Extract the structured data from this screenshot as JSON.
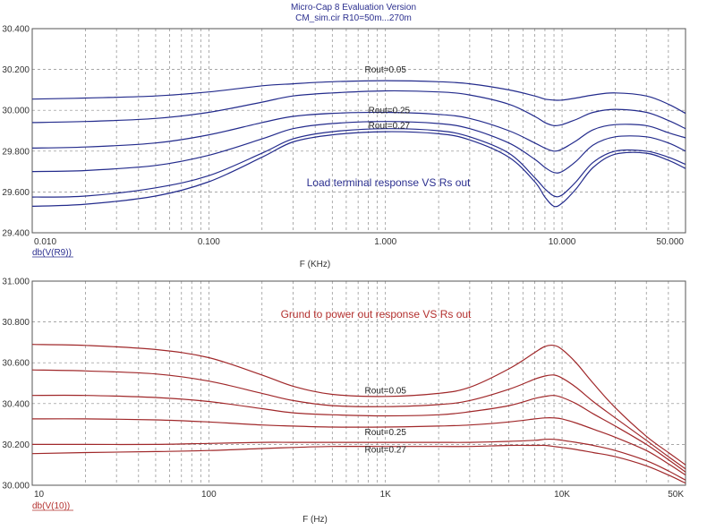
{
  "header": {
    "title": "Micro-Cap 8 Evaluation Version",
    "subtitle": "CM_sim.cir R10=50m...270m"
  },
  "colors": {
    "top_trace": "#232b8c",
    "bottom_trace": "#a0282a",
    "top_text": "#2b2f8f",
    "bottom_text": "#b3302e",
    "grid": "#8a8a8a"
  },
  "chart_data": [
    {
      "type": "line",
      "x_scale": "log",
      "xlim": [
        0.01,
        50
      ],
      "ylim": [
        29.4,
        30.4
      ],
      "xlabel": "F (KHz)",
      "ylabel": "db(V(R9))",
      "x_ticks": [
        0.01,
        0.1,
        1,
        10,
        50
      ],
      "x_tick_labels": [
        "0.010",
        "0.100",
        "1.000",
        "10.000",
        "50.000"
      ],
      "y_ticks": [
        29.4,
        29.6,
        29.8,
        30.0,
        30.2,
        30.4
      ],
      "y_tick_labels": [
        "29.400",
        "29.600",
        "29.800",
        "30.000",
        "30.200",
        "30.400"
      ],
      "annotation": "Load terminal response VS Rs out",
      "curve_labels": [
        {
          "text": "Rout=0.05",
          "x": 1.0,
          "y": 30.185
        },
        {
          "text": "Rout=0.25",
          "x": 1.05,
          "y": 29.985
        },
        {
          "text": "Rout=0.27",
          "x": 1.05,
          "y": 29.91
        }
      ],
      "x": [
        0.01,
        0.02,
        0.05,
        0.1,
        0.2,
        0.3,
        0.5,
        1,
        2,
        3,
        5,
        7,
        8,
        9,
        10,
        12,
        15,
        20,
        30,
        40,
        50
      ],
      "series": [
        {
          "values": [
            30.055,
            30.06,
            30.07,
            30.09,
            30.12,
            30.13,
            30.14,
            30.145,
            30.14,
            30.13,
            30.1,
            30.07,
            30.055,
            30.05,
            30.05,
            30.06,
            30.075,
            30.085,
            30.07,
            30.03,
            29.985
          ]
        },
        {
          "values": [
            29.94,
            29.945,
            29.96,
            29.99,
            30.04,
            30.07,
            30.085,
            30.095,
            30.09,
            30.075,
            30.03,
            29.97,
            29.94,
            29.925,
            29.93,
            29.955,
            29.99,
            30.005,
            29.99,
            29.95,
            29.91
          ]
        },
        {
          "values": [
            29.815,
            29.82,
            29.84,
            29.88,
            29.94,
            29.97,
            29.985,
            29.99,
            29.98,
            29.96,
            29.9,
            29.84,
            29.815,
            29.8,
            29.81,
            29.85,
            29.905,
            29.93,
            29.925,
            29.89,
            29.865
          ]
        },
        {
          "values": [
            29.7,
            29.705,
            29.73,
            29.78,
            29.86,
            29.91,
            29.935,
            29.945,
            29.935,
            29.91,
            29.84,
            29.76,
            29.72,
            29.695,
            29.7,
            29.75,
            29.83,
            29.87,
            29.87,
            29.84,
            29.8
          ]
        },
        {
          "values": [
            29.575,
            29.58,
            29.62,
            29.68,
            29.79,
            29.86,
            29.895,
            29.91,
            29.9,
            29.87,
            29.79,
            29.67,
            29.615,
            29.58,
            29.585,
            29.65,
            29.745,
            29.8,
            29.8,
            29.77,
            29.735
          ]
        },
        {
          "values": [
            29.53,
            29.54,
            29.58,
            29.65,
            29.77,
            29.845,
            29.88,
            29.895,
            29.885,
            29.855,
            29.77,
            29.65,
            29.575,
            29.53,
            29.545,
            29.615,
            29.72,
            29.785,
            29.79,
            29.755,
            29.715
          ]
        }
      ]
    },
    {
      "type": "line",
      "x_scale": "log",
      "xlim": [
        10,
        50000
      ],
      "ylim": [
        30.0,
        31.0
      ],
      "xlabel": "F (Hz)",
      "ylabel": "db(V(10))",
      "x_ticks": [
        10,
        100,
        1000,
        10000,
        50000
      ],
      "x_tick_labels": [
        "10",
        "100",
        "1K",
        "10K",
        "50K"
      ],
      "y_ticks": [
        30.0,
        30.2,
        30.4,
        30.6,
        30.8,
        31.0
      ],
      "y_tick_labels": [
        "30.000",
        "30.200",
        "30.400",
        "30.600",
        "30.800",
        "31.000"
      ],
      "annotation": "Grund to power out response VS Rs out",
      "curve_labels": [
        {
          "text": "Rout=0.05",
          "x": 1000,
          "y": 30.45
        },
        {
          "text": "Rout=0.25",
          "x": 1000,
          "y": 30.245
        },
        {
          "text": "Rout=0.27",
          "x": 1000,
          "y": 30.16
        }
      ],
      "x": [
        10,
        20,
        50,
        100,
        200,
        300,
        500,
        1000,
        2000,
        3000,
        5000,
        7000,
        8000,
        9000,
        10000,
        12000,
        15000,
        20000,
        30000,
        40000,
        50000
      ],
      "series": [
        {
          "values": [
            30.69,
            30.685,
            30.665,
            30.625,
            30.54,
            30.485,
            30.445,
            30.435,
            30.45,
            30.48,
            30.57,
            30.65,
            30.68,
            30.685,
            30.665,
            30.6,
            30.5,
            30.38,
            30.24,
            30.16,
            30.1
          ]
        },
        {
          "values": [
            30.565,
            30.56,
            30.545,
            30.51,
            30.45,
            30.415,
            30.39,
            30.385,
            30.395,
            30.415,
            30.47,
            30.52,
            30.535,
            30.54,
            30.525,
            30.48,
            30.41,
            30.33,
            30.22,
            30.14,
            30.08
          ]
        },
        {
          "values": [
            30.44,
            30.44,
            30.43,
            30.41,
            30.375,
            30.355,
            30.345,
            30.34,
            30.345,
            30.36,
            30.39,
            30.425,
            30.435,
            30.44,
            30.43,
            30.4,
            30.35,
            30.29,
            30.2,
            30.125,
            30.065
          ]
        },
        {
          "values": [
            30.325,
            30.325,
            30.32,
            30.31,
            30.295,
            30.29,
            30.285,
            30.285,
            30.29,
            30.295,
            30.31,
            30.325,
            30.33,
            30.33,
            30.325,
            30.305,
            30.275,
            30.235,
            30.17,
            30.105,
            30.05
          ]
        },
        {
          "values": [
            30.2,
            30.2,
            30.2,
            30.205,
            30.21,
            30.21,
            30.21,
            30.21,
            30.21,
            30.21,
            30.215,
            30.22,
            30.225,
            30.225,
            30.22,
            30.21,
            30.195,
            30.17,
            30.12,
            30.07,
            30.025
          ]
        },
        {
          "values": [
            30.155,
            30.16,
            30.165,
            30.17,
            30.18,
            30.185,
            30.19,
            30.19,
            30.19,
            30.19,
            30.195,
            30.195,
            30.195,
            30.19,
            30.185,
            30.175,
            30.16,
            30.14,
            30.095,
            30.05,
            30.01
          ]
        }
      ]
    }
  ]
}
